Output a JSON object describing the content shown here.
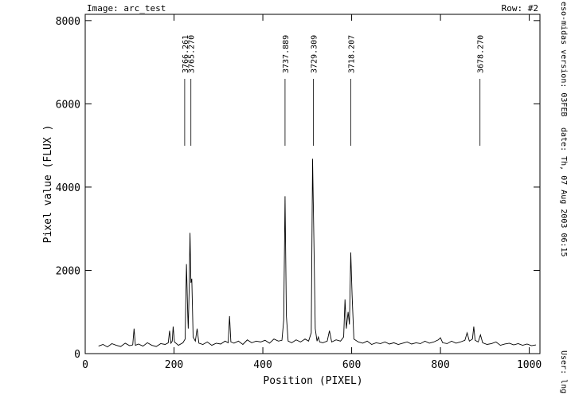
{
  "chart_data": {
    "type": "line",
    "title": "Image: arc_test",
    "subtitle": "Row: #2",
    "x_label": "Position (PIXEL)",
    "y_label": "Pixel value (FLUX )",
    "side_notes": [
      "eso-midas version: 03FEB",
      "date: Th, 07 Aug 2003 06:15",
      "User: lng"
    ],
    "color": "#000000",
    "xlim": [
      0,
      1024
    ],
    "ylim": [
      0,
      8150
    ],
    "xticks": [
      0,
      200,
      400,
      600,
      800,
      1000
    ],
    "yticks": [
      0,
      2000,
      4000,
      6000,
      8000
    ],
    "line_ids": [
      {
        "x": 224,
        "label": "3766.261"
      },
      {
        "x": 238,
        "label": "3765.270"
      },
      {
        "x": 450,
        "label": "3737.889"
      },
      {
        "x": 514,
        "label": "3729.309"
      },
      {
        "x": 598,
        "label": "3718.207"
      },
      {
        "x": 889,
        "label": "3678.270"
      }
    ],
    "x": [
      30,
      40,
      50,
      60,
      70,
      80,
      90,
      100,
      107,
      110,
      113,
      120,
      130,
      140,
      150,
      160,
      170,
      180,
      187,
      190,
      193,
      196,
      198,
      201,
      210,
      220,
      225,
      228,
      231,
      232,
      234,
      236,
      238,
      240,
      243,
      248,
      252,
      256,
      265,
      275,
      285,
      295,
      305,
      315,
      322,
      325,
      328,
      335,
      345,
      355,
      365,
      375,
      385,
      395,
      405,
      415,
      425,
      435,
      443,
      447,
      450,
      453,
      457,
      465,
      475,
      485,
      495,
      503,
      509,
      512,
      515,
      518,
      522,
      525,
      528,
      535,
      545,
      550,
      555,
      565,
      575,
      582,
      585,
      588,
      592,
      595,
      598,
      601,
      605,
      615,
      625,
      635,
      645,
      655,
      665,
      675,
      685,
      695,
      705,
      715,
      725,
      735,
      745,
      755,
      765,
      775,
      785,
      795,
      800,
      805,
      815,
      825,
      835,
      845,
      855,
      860,
      865,
      872,
      875,
      878,
      885,
      890,
      895,
      905,
      915,
      925,
      935,
      945,
      955,
      965,
      975,
      985,
      995,
      1005,
      1015
    ],
    "values": [
      180,
      220,
      160,
      240,
      200,
      170,
      250,
      190,
      210,
      600,
      200,
      230,
      180,
      260,
      200,
      170,
      240,
      220,
      260,
      550,
      250,
      300,
      650,
      280,
      200,
      260,
      350,
      2150,
      900,
      600,
      1500,
      2900,
      1700,
      1800,
      400,
      300,
      600,
      250,
      220,
      280,
      200,
      250,
      230,
      300,
      260,
      900,
      280,
      250,
      300,
      220,
      330,
      260,
      300,
      280,
      320,
      250,
      350,
      300,
      320,
      800,
      3780,
      900,
      300,
      260,
      330,
      280,
      350,
      300,
      500,
      4680,
      2700,
      600,
      300,
      400,
      280,
      260,
      300,
      550,
      280,
      330,
      300,
      400,
      1300,
      600,
      1000,
      700,
      2430,
      1400,
      350,
      280,
      250,
      300,
      220,
      260,
      240,
      280,
      230,
      260,
      220,
      250,
      280,
      230,
      260,
      240,
      300,
      250,
      280,
      330,
      380,
      260,
      240,
      300,
      250,
      280,
      320,
      500,
      300,
      350,
      650,
      320,
      280,
      450,
      260,
      220,
      240,
      280,
      200,
      230,
      250,
      210,
      240,
      200,
      230,
      190,
      210
    ]
  }
}
